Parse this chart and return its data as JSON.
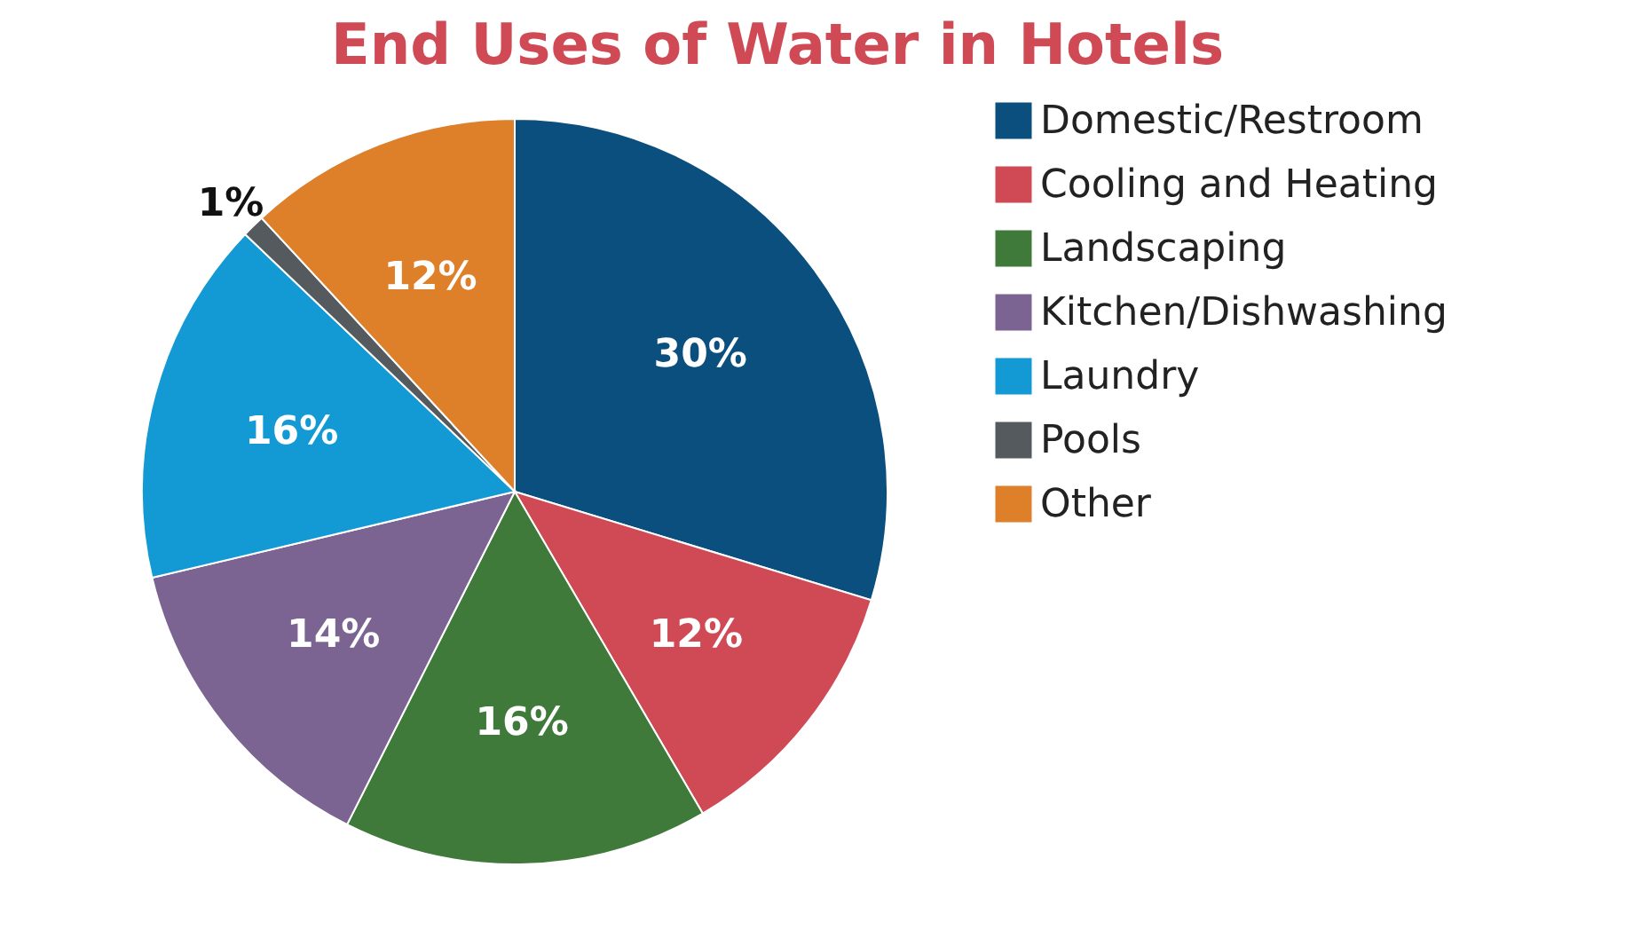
{
  "chart_data": {
    "type": "pie",
    "title": "End Uses of Water in Hotels",
    "categories": [
      "Domestic/Restroom",
      "Cooling and Heating",
      "Landscaping",
      "Kitchen/Dishwashing",
      "Laundry",
      "Pools",
      "Other"
    ],
    "values": [
      30,
      12,
      16,
      14,
      16,
      1,
      12
    ],
    "colors": [
      "#0a4f7e",
      "#d04a55",
      "#3f7a3a",
      "#7b6491",
      "#139ad4",
      "#555a5e",
      "#de7f2a"
    ],
    "value_labels": [
      "30%",
      "12%",
      "16%",
      "14%",
      "16%",
      "1%",
      "12%"
    ],
    "legend": "right"
  }
}
